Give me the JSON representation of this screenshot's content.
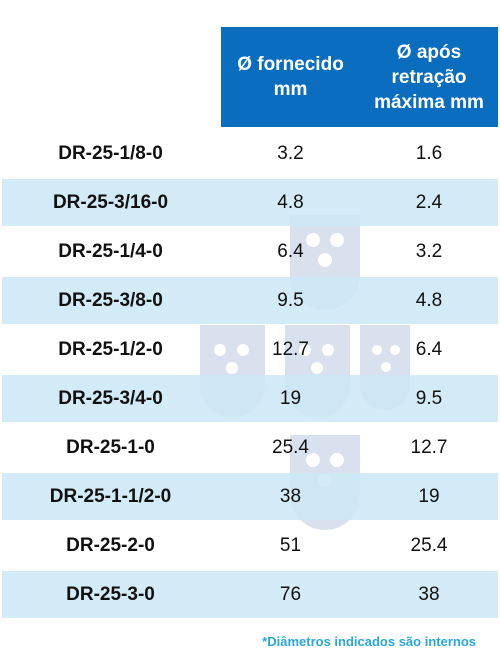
{
  "header": {
    "col_supplied": [
      "Ø fornecido",
      "mm"
    ],
    "col_recovered": [
      "Ø após",
      "retração",
      "máxima mm"
    ]
  },
  "rows": [
    {
      "name": "DR-25-1/8-0",
      "supplied": "3.2",
      "recovered": "1.6"
    },
    {
      "name": "DR-25-3/16-0",
      "supplied": "4.8",
      "recovered": "2.4"
    },
    {
      "name": "DR-25-1/4-0",
      "supplied": "6.4",
      "recovered": "3.2"
    },
    {
      "name": "DR-25-3/8-0",
      "supplied": "9.5",
      "recovered": "4.8"
    },
    {
      "name": "DR-25-1/2-0",
      "supplied": "12.7",
      "recovered": "6.4"
    },
    {
      "name": "DR-25-3/4-0",
      "supplied": "19",
      "recovered": "9.5"
    },
    {
      "name": "DR-25-1-0",
      "supplied": "25.4",
      "recovered": "12.7"
    },
    {
      "name": "DR-25-1-1/2-0",
      "supplied": "38",
      "recovered": "19"
    },
    {
      "name": "DR-25-2-0",
      "supplied": "51",
      "recovered": "25.4"
    },
    {
      "name": "DR-25-3-0",
      "supplied": "76",
      "recovered": "38"
    }
  ],
  "footnote": "*Diâmetros indicados são internos",
  "colors": {
    "header_bg": "#0b6dbd",
    "row_shade": "#cbe8f5",
    "footnote": "#2aa6d8"
  },
  "watermark_icon": "tube-cross-section-watermark"
}
